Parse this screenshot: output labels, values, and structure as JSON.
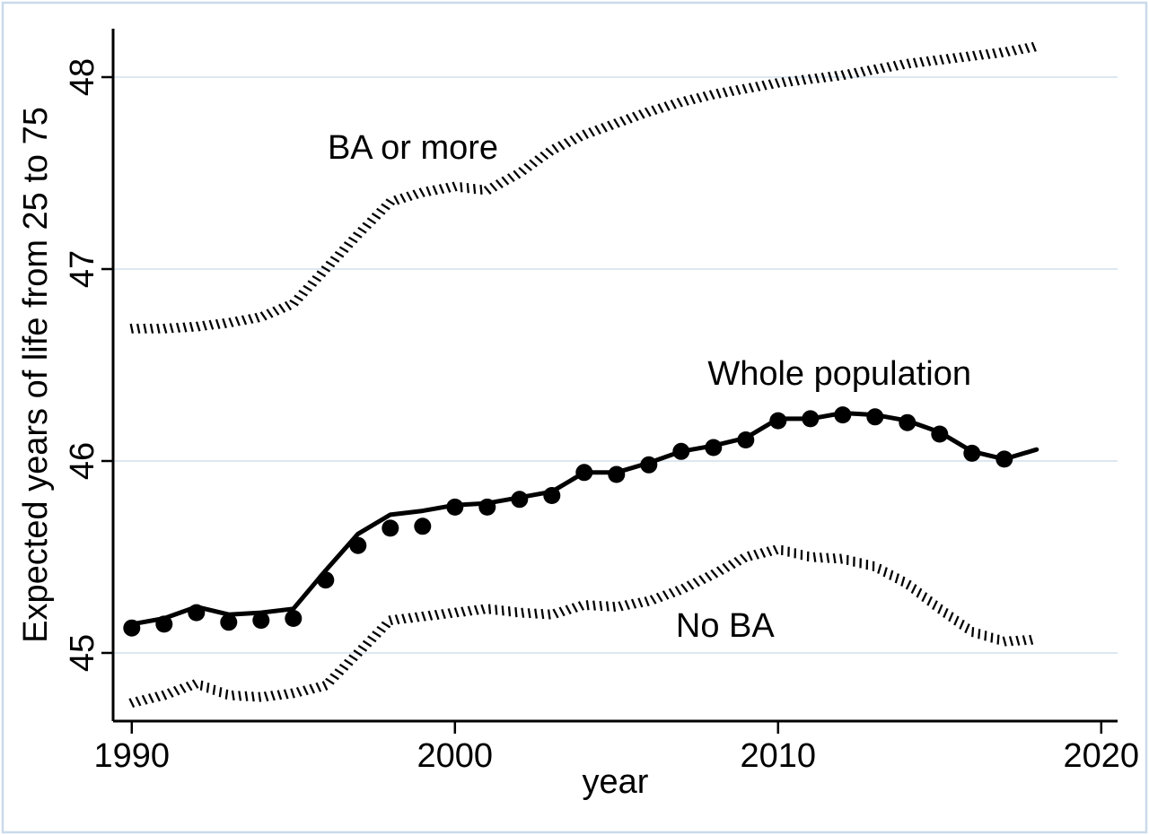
{
  "figure": {
    "background": "#ffffff",
    "border_color": "#c9dbeb",
    "grid_color": "#dde7f1",
    "axis_color": "#000000",
    "series_color": "#000000",
    "text_color": "#000000"
  },
  "chart_data": {
    "type": "line",
    "title": "",
    "xlabel": "year",
    "ylabel": "Expected years of life from 25 to 75",
    "x_ticks": [
      1990,
      2000,
      2010,
      2020
    ],
    "y_ticks": [
      45,
      46,
      47,
      48
    ],
    "xlim": [
      1989.42,
      2020.5
    ],
    "ylim": [
      44.72,
      48.25
    ],
    "grid": "horizontal-only",
    "legend_position": "inline-annotations",
    "x": [
      1990,
      1991,
      1992,
      1993,
      1994,
      1995,
      1996,
      1997,
      1998,
      1999,
      2000,
      2001,
      2002,
      2003,
      2004,
      2005,
      2006,
      2007,
      2008,
      2009,
      2010,
      2011,
      2012,
      2013,
      2014,
      2015,
      2016,
      2017,
      2018
    ],
    "series": [
      {
        "name": "BA or more",
        "style": "hatched-dash",
        "values": [
          46.69,
          46.69,
          46.7,
          46.72,
          46.75,
          46.82,
          47.0,
          47.18,
          47.35,
          47.4,
          47.43,
          47.41,
          47.5,
          47.62,
          47.7,
          47.76,
          47.82,
          47.87,
          47.91,
          47.94,
          47.97,
          47.99,
          48.01,
          48.04,
          48.07,
          48.09,
          48.11,
          48.13,
          48.16
        ]
      },
      {
        "name": "Whole population",
        "style": "solid",
        "values": [
          45.15,
          45.18,
          45.24,
          45.2,
          45.21,
          45.23,
          45.43,
          45.62,
          45.72,
          45.74,
          45.77,
          45.78,
          45.81,
          45.84,
          45.94,
          45.94,
          45.99,
          46.05,
          46.08,
          46.12,
          46.22,
          46.22,
          46.25,
          46.24,
          46.21,
          46.15,
          46.05,
          46.01,
          46.06
        ]
      },
      {
        "name": "Whole population (markers)",
        "style": "markers",
        "marker_years": [
          1990,
          1991,
          1992,
          1993,
          1994,
          1995,
          1996,
          1997,
          1998,
          1999,
          2000,
          2001,
          2002,
          2003,
          2004,
          2005,
          2006,
          2007,
          2008,
          2009,
          2010,
          2011,
          2012,
          2013,
          2014,
          2015,
          2016,
          2017
        ],
        "values": [
          45.13,
          45.15,
          45.21,
          45.16,
          45.17,
          45.18,
          45.38,
          45.56,
          45.65,
          45.66,
          45.76,
          45.76,
          45.8,
          45.82,
          45.94,
          45.93,
          45.98,
          46.05,
          46.07,
          46.11,
          46.21,
          46.22,
          46.24,
          46.23,
          46.2,
          46.14,
          46.04,
          46.01
        ]
      },
      {
        "name": "No BA",
        "style": "hatched-dash",
        "values": [
          44.74,
          44.78,
          44.84,
          44.78,
          44.77,
          44.79,
          44.83,
          45.0,
          45.17,
          45.19,
          45.21,
          45.23,
          45.21,
          45.2,
          45.25,
          45.24,
          45.27,
          45.33,
          45.41,
          45.5,
          45.54,
          45.5,
          45.49,
          45.45,
          45.36,
          45.23,
          45.11,
          45.06,
          45.07
        ]
      }
    ],
    "annotations": [
      {
        "text": "BA or more",
        "year": 1998.7,
        "value": 47.575
      },
      {
        "text": "Whole population",
        "year": 2011.9,
        "value": 46.397
      },
      {
        "text": "No BA",
        "year": 2008.36,
        "value": 45.084
      }
    ]
  }
}
